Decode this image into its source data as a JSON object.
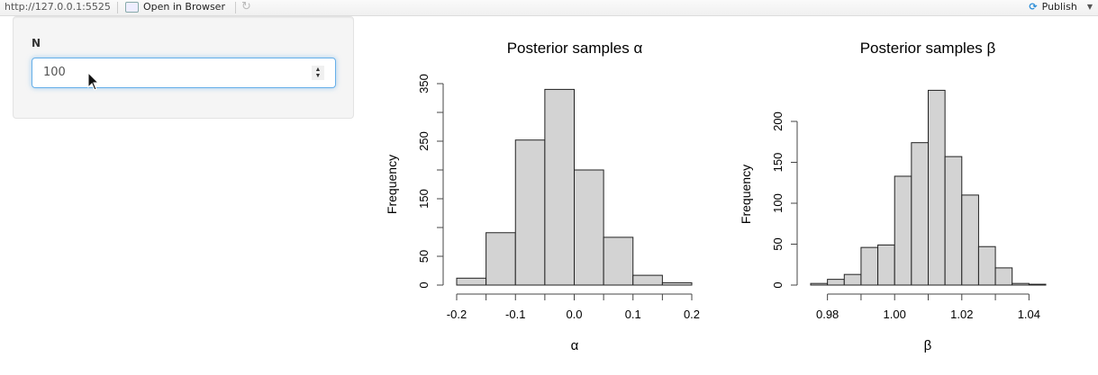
{
  "topbar": {
    "url": "http://127.0.0.1:5525",
    "open_in_browser": "Open in Browser",
    "publish": "Publish"
  },
  "sidebar": {
    "input_label": "N",
    "input_value": "100"
  },
  "chart_data": [
    {
      "type": "bar",
      "title": "Posterior samples  α",
      "xlabel": "α",
      "ylabel": "Frequency",
      "bin_edges": [
        -0.2,
        -0.15,
        -0.1,
        -0.05,
        0.0,
        0.05,
        0.1,
        0.15,
        0.2
      ],
      "values": [
        12,
        91,
        252,
        340,
        200,
        83,
        17,
        4
      ],
      "xticks": [
        "-0.2",
        "-0.1",
        "0.0",
        "0.1",
        "0.2"
      ],
      "yticks": [
        "0",
        "50",
        "150",
        "250",
        "350"
      ],
      "ylim": [
        0,
        350
      ],
      "grid": false
    },
    {
      "type": "bar",
      "title": "Posterior samples  β",
      "xlabel": "β",
      "ylabel": "Frequency",
      "bin_edges": [
        0.975,
        0.98,
        0.985,
        0.99,
        0.995,
        1.0,
        1.005,
        1.01,
        1.015,
        1.02,
        1.025,
        1.03,
        1.035,
        1.04,
        1.045
      ],
      "values": [
        2,
        7,
        13,
        46,
        49,
        133,
        174,
        238,
        157,
        110,
        47,
        21,
        2,
        1
      ],
      "xticks": [
        "0.98",
        "1.00",
        "1.02",
        "1.04"
      ],
      "yticks": [
        "0",
        "50",
        "100",
        "150",
        "200"
      ],
      "ylim": [
        0,
        200
      ],
      "grid": false
    }
  ]
}
